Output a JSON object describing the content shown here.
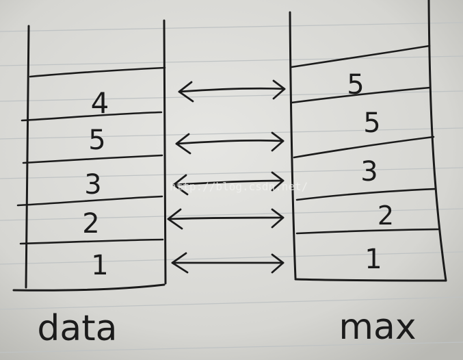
{
  "stacks": {
    "data": {
      "label": "data",
      "cells": [
        "4",
        "5",
        "3",
        "2",
        "1"
      ]
    },
    "max": {
      "label": "max",
      "cells": [
        "5",
        "5",
        "3",
        "2",
        "1"
      ]
    }
  },
  "watermark": "http://blog.csdn.net/",
  "colors": {
    "paper": "#d9d9d6",
    "ruling": "#bfc3c4",
    "ink": "#1b1b1b"
  },
  "arrows": {
    "count": 5,
    "style": "double-headed"
  }
}
